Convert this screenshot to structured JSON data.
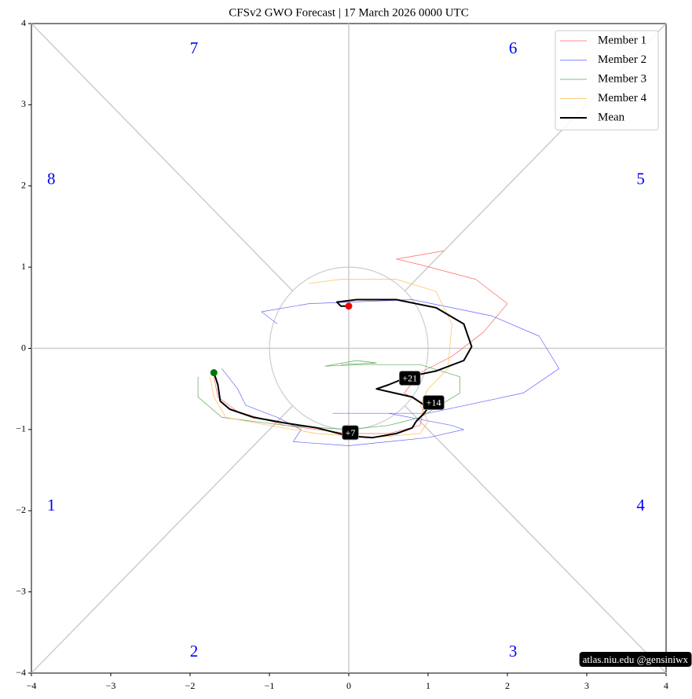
{
  "chart_data": {
    "type": "line",
    "title": "CFSv2 GWO Forecast   |   17  March  2026 0000 UTC",
    "watermark": "atlas.niu.edu  @gensiniwx",
    "phase_labels": [
      "1",
      "2",
      "3",
      "4",
      "5",
      "6",
      "7",
      "8"
    ],
    "day_labels": [
      "+7",
      "+14",
      "+21"
    ],
    "xlim": [
      -4,
      4
    ],
    "ylim": [
      -4,
      4
    ],
    "xticks": [
      {
        "value": -4,
        "label": "−4"
      },
      {
        "value": -3,
        "label": "−3"
      },
      {
        "value": -2,
        "label": "−2"
      },
      {
        "value": -1,
        "label": "−1"
      },
      0,
      1,
      2,
      3,
      4
    ],
    "yticks": [
      {
        "value": -4,
        "label": "−4"
      },
      {
        "value": -3,
        "label": "−3"
      },
      {
        "value": -2,
        "label": "−2"
      },
      {
        "value": -1,
        "label": "−1"
      },
      0,
      1,
      2,
      3,
      4
    ],
    "legend": "upper right",
    "series": [
      {
        "name": "Member 1",
        "color": "#ff6666",
        "x": [
          -1.7,
          -1.65,
          -1.4,
          -0.8,
          0,
          0.5,
          0.9,
          0.95,
          0.7,
          0.9,
          1.3,
          1.7,
          2.0,
          1.6,
          0.9,
          0.6,
          0.9,
          1.2
        ],
        "values": [
          -0.35,
          -0.6,
          -0.78,
          -0.95,
          -1.05,
          -1.05,
          -0.95,
          -0.7,
          -0.55,
          -0.3,
          -0.1,
          0.2,
          0.55,
          0.85,
          1.03,
          1.1,
          1.15,
          1.2
        ]
      },
      {
        "name": "Member 2",
        "color": "#6666ff",
        "x": [
          -1.6,
          -1.4,
          -1.3,
          -0.9,
          -0.6,
          -0.7,
          0,
          1.0,
          1.45,
          1.3,
          0.5,
          -0.2,
          1.0,
          2.2,
          2.65,
          2.4,
          1.8,
          0.8,
          -0.5,
          -1.1,
          -0.9
        ],
        "values": [
          -0.25,
          -0.5,
          -0.7,
          -0.85,
          -1.0,
          -1.15,
          -1.2,
          -1.1,
          -1.0,
          -0.95,
          -0.8,
          -0.8,
          -0.8,
          -0.55,
          -0.25,
          0.15,
          0.4,
          0.6,
          0.55,
          0.45,
          0.3
        ]
      },
      {
        "name": "Member 3",
        "color": "#55aa55",
        "x": [
          -1.9,
          -1.9,
          -1.6,
          -0.8,
          0,
          0.5,
          0.9,
          1.4,
          1.4,
          0.9,
          0.2,
          -0.3,
          0.1,
          0.35,
          -0.1
        ],
        "values": [
          -0.35,
          -0.6,
          -0.85,
          -0.95,
          -1.0,
          -0.95,
          -0.85,
          -0.55,
          -0.35,
          -0.2,
          -0.2,
          -0.22,
          -0.15,
          -0.18,
          -0.2
        ]
      },
      {
        "name": "Member 4",
        "color": "#ffbb55",
        "x": [
          -1.75,
          -1.7,
          -1.55,
          -1.0,
          -0.4,
          0.3,
          0.9,
          1.0,
          0.9,
          1.0,
          1.25,
          1.3,
          1.1,
          0.6,
          -0.1,
          -0.5
        ],
        "values": [
          -0.35,
          -0.6,
          -0.85,
          -0.95,
          -1.05,
          -1.1,
          -1.05,
          -0.9,
          -0.7,
          -0.5,
          -0.25,
          0.3,
          0.7,
          0.85,
          0.85,
          0.8
        ]
      },
      {
        "name": "Mean",
        "color": "#000000",
        "x": [
          -1.7,
          -1.65,
          -1.62,
          -1.5,
          -1.2,
          -0.8,
          -0.4,
          0,
          0.3,
          0.6,
          0.8,
          0.85,
          0.95,
          1.0,
          0.8,
          0.35,
          0.5,
          0.75,
          1.1,
          1.45,
          1.55,
          1.45,
          1.1,
          0.6,
          0.1,
          -0.15,
          -0.1,
          0
        ],
        "values": [
          -0.3,
          -0.45,
          -0.65,
          -0.75,
          -0.85,
          -0.92,
          -0.98,
          -1.08,
          -1.1,
          -1.05,
          -0.98,
          -0.9,
          -0.8,
          -0.73,
          -0.6,
          -0.5,
          -0.45,
          -0.35,
          -0.28,
          -0.15,
          0.02,
          0.3,
          0.5,
          0.6,
          0.6,
          0.57,
          0.52,
          0.52
        ]
      }
    ]
  }
}
